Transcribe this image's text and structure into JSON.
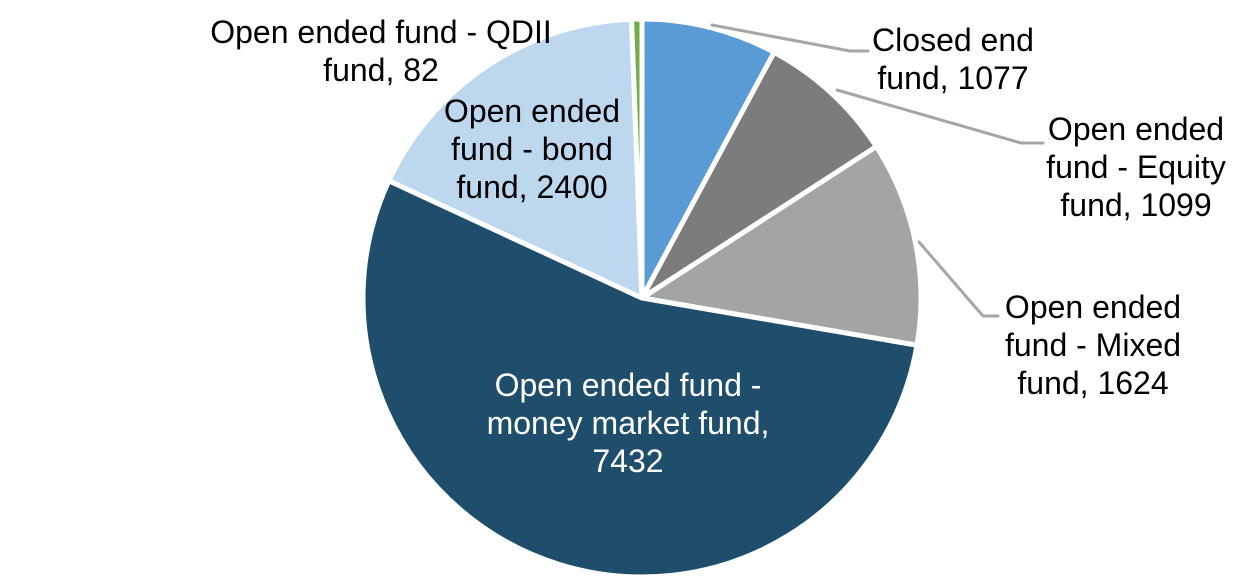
{
  "chart_data": {
    "type": "pie",
    "title": "",
    "legend": "none",
    "background": "#FFFFFF",
    "direction": "clockwise",
    "start_angle_deg": 0,
    "slice_border_color": "#FFFFFF",
    "leader_line_color": "#A6A6A6",
    "slices": [
      {
        "label": "Closed end fund",
        "value": 1077,
        "color": "#5B9BD5",
        "label_lines": [
          "Closed end",
          "fund, 1077"
        ],
        "label_color": "#000000"
      },
      {
        "label": "Open ended fund - Equity fund",
        "value": 1099,
        "color": "#7C7C7C",
        "label_lines": [
          "Open ended",
          "fund - Equity",
          "fund, 1099"
        ],
        "label_color": "#000000"
      },
      {
        "label": "Open ended fund - Mixed fund",
        "value": 1624,
        "color": "#A4A4A4",
        "label_lines": [
          "Open ended",
          "fund - Mixed",
          "fund, 1624"
        ],
        "label_color": "#000000"
      },
      {
        "label": "Open ended fund - money market fund",
        "value": 7432,
        "color": "#1F4E6D",
        "label_lines": [
          "Open ended fund -",
          "money market fund,",
          "7432"
        ],
        "label_color": "#FFFFFF"
      },
      {
        "label": "Open ended fund - bond fund",
        "value": 2400,
        "color": "#BDD7EE",
        "label_lines": [
          "Open ended",
          "fund - bond",
          "fund, 2400"
        ],
        "label_color": "#000000"
      },
      {
        "label": "Open ended fund - QDII fund",
        "value": 82,
        "color": "#70AD47",
        "label_lines": [
          "Open ended fund - QDII",
          "fund, 82"
        ],
        "label_color": "#000000"
      }
    ]
  }
}
